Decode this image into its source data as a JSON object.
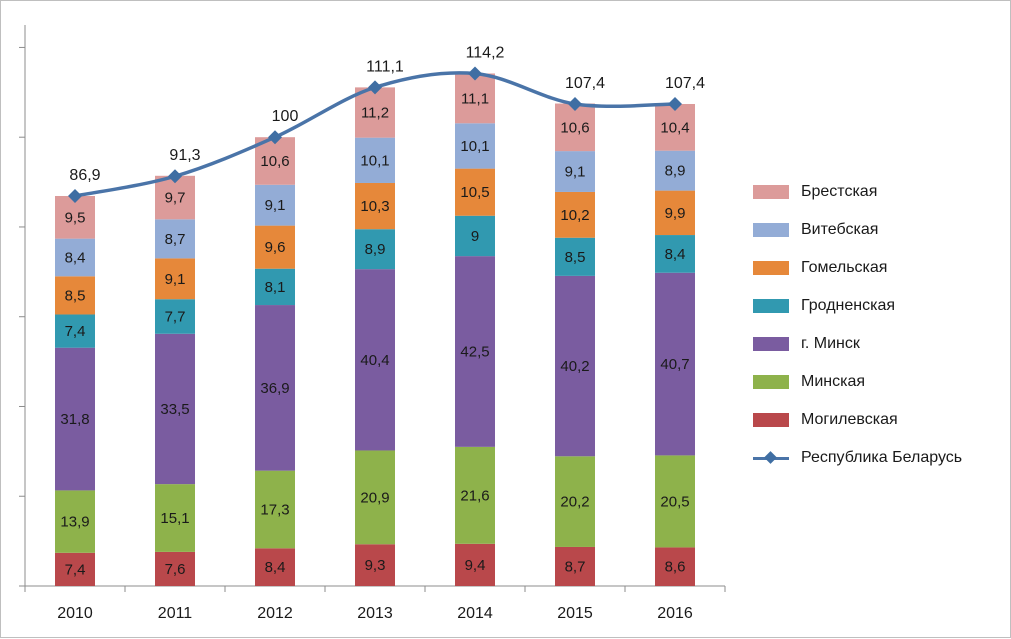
{
  "chart_data": {
    "type": "bar",
    "stacked": true,
    "categories": [
      "2010",
      "2011",
      "2012",
      "2013",
      "2014",
      "2015",
      "2016"
    ],
    "ylim": [
      0,
      125
    ],
    "grid": false,
    "legend_position": "right",
    "series": [
      {
        "name": "Могилевская",
        "color": "#b9484b",
        "values": [
          7.4,
          7.6,
          8.4,
          9.3,
          9.4,
          8.7,
          8.6
        ]
      },
      {
        "name": "Минская",
        "color": "#8eb24b",
        "values": [
          13.9,
          15.1,
          17.3,
          20.9,
          21.6,
          20.2,
          20.5
        ]
      },
      {
        "name": "г. Минск",
        "color": "#7a5ca0",
        "values": [
          31.8,
          33.5,
          36.9,
          40.4,
          42.5,
          40.2,
          40.7
        ]
      },
      {
        "name": "Гродненская",
        "color": "#3199b0",
        "values": [
          7.4,
          7.7,
          8.1,
          8.9,
          9,
          8.5,
          8.4
        ]
      },
      {
        "name": "Гомельская",
        "color": "#e6883a",
        "values": [
          8.5,
          9.1,
          9.6,
          10.3,
          10.5,
          10.2,
          9.9
        ]
      },
      {
        "name": "Витебская",
        "color": "#93acd6",
        "values": [
          8.4,
          8.7,
          9.1,
          10.1,
          10.1,
          9.1,
          8.9
        ]
      },
      {
        "name": "Брестская",
        "color": "#dc9b9a",
        "values": [
          9.5,
          9.7,
          10.6,
          11.2,
          11.1,
          10.6,
          10.4
        ]
      }
    ],
    "series_labels": {
      "Могилевская": [
        "7,4",
        "7,6",
        "8,4",
        "9,3",
        "9,4",
        "8,7",
        "8,6"
      ],
      "Минская": [
        "13,9",
        "15,1",
        "17,3",
        "20,9",
        "21,6",
        "20,2",
        "20,5"
      ],
      "г. Минск": [
        "31,8",
        "33,5",
        "36,9",
        "40,4",
        "42,5",
        "40,2",
        "40,7"
      ],
      "Гродненская": [
        "7,4",
        "7,7",
        "8,1",
        "8,9",
        "9",
        "8,5",
        "8,4"
      ],
      "Гомельская": [
        "8,5",
        "9,1",
        "9,6",
        "10,3",
        "10,5",
        "10,2",
        "9,9"
      ],
      "Витебская": [
        "8,4",
        "8,7",
        "9,1",
        "10,1",
        "10,1",
        "9,1",
        "8,9"
      ],
      "Брестская": [
        "9,5",
        "9,7",
        "10,6",
        "11,2",
        "11,1",
        "10,6",
        "10,4"
      ]
    },
    "line_series": {
      "name": "Республика Беларусь",
      "color": "#4a74a8",
      "values": [
        86.9,
        91.3,
        100,
        111.1,
        114.2,
        107.4,
        107.4
      ],
      "labels": [
        "86,9",
        "91,3",
        "100",
        "111,1",
        "114,2",
        "107,4",
        "107,4"
      ]
    },
    "legend_order": [
      "Брестская",
      "Витебская",
      "Гомельская",
      "Гродненская",
      "г. Минск",
      "Минская",
      "Могилевская",
      "Республика Беларусь"
    ]
  }
}
